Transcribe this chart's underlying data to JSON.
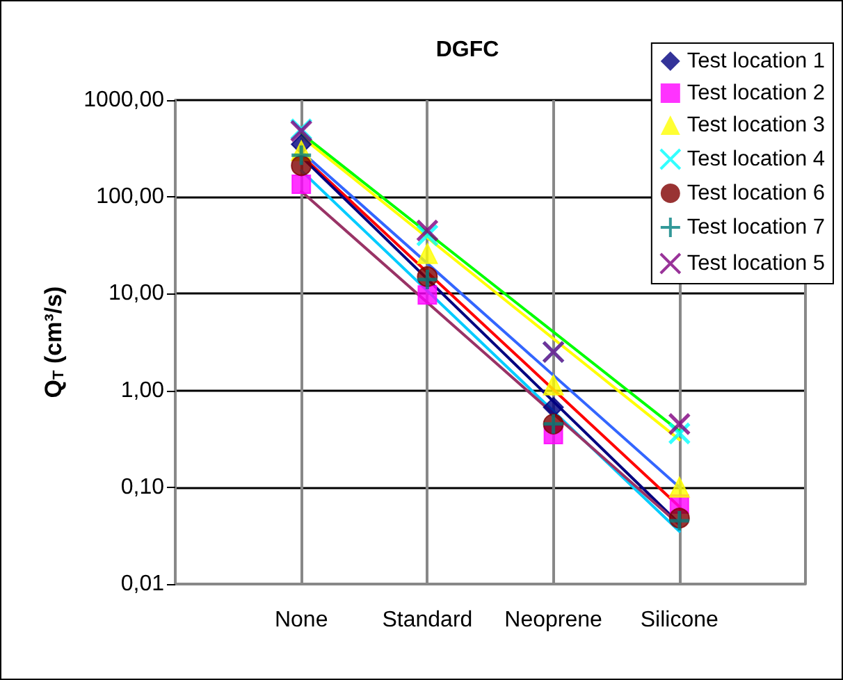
{
  "chart_data": {
    "type": "scatter",
    "title": "DGFC",
    "ylabel": "Q$_{T}$ (cm³/s)",
    "categories": [
      "None",
      "Standard",
      "Neoprene",
      "Silicone"
    ],
    "log": "y",
    "ylim": [
      0.01,
      1000
    ],
    "yticks": [
      {
        "value": 0.01,
        "label": "0,01"
      },
      {
        "value": 0.1,
        "label": "0,10"
      },
      {
        "value": 1,
        "label": "1,00"
      },
      {
        "value": 10,
        "label": "10,00"
      },
      {
        "value": 100,
        "label": "100,00"
      },
      {
        "value": 1000,
        "label": "1000,00"
      }
    ],
    "grid": true,
    "legend": "top right",
    "series": [
      {
        "name": "Test location 1",
        "color": "#000080",
        "marker": "diamond",
        "values": [
          350,
          null,
          0.67,
          null
        ]
      },
      {
        "name": "Test location 2",
        "color": "#ff00ff",
        "marker": "square",
        "values": [
          135,
          9.7,
          0.35,
          0.067
        ]
      },
      {
        "name": "Test location 3",
        "color": "#ffff00",
        "marker": "triangle",
        "values": [
          300,
          26,
          1.14,
          0.1
        ]
      },
      {
        "name": "Test location 4",
        "color": "#00ffff",
        "marker": "cross",
        "values": [
          500,
          40,
          2.5,
          0.36
        ]
      },
      {
        "name": "Test location 6",
        "color": "#800000",
        "marker": "circle",
        "values": [
          210,
          15,
          0.45,
          0.048
        ]
      },
      {
        "name": "Test location 7",
        "color": "#008080",
        "marker": "plus",
        "values": [
          270,
          14,
          0.45,
          0.045
        ]
      },
      {
        "name": "Test location 5",
        "color": "#800080",
        "marker": "cross",
        "values": [
          480,
          45,
          2.5,
          0.45
        ]
      },
      {
        "type": "line",
        "color": "#00ff00",
        "x": [
          "None",
          "Silicone"
        ],
        "values": [
          453,
          0.38
        ]
      },
      {
        "type": "line",
        "color": "#ffff00",
        "x": [
          "None",
          "Silicone"
        ],
        "values": [
          420,
          0.31
        ]
      },
      {
        "type": "line",
        "color": "#3366ff",
        "x": [
          "None",
          "Silicone"
        ],
        "values": [
          295,
          0.1
        ]
      },
      {
        "type": "line",
        "color": "#ff0000",
        "x": [
          "None",
          "Silicone"
        ],
        "values": [
          270,
          0.063
        ]
      },
      {
        "type": "line",
        "color": "#000080",
        "x": [
          "None",
          "Silicone"
        ],
        "values": [
          260,
          0.042
        ]
      },
      {
        "type": "line",
        "color": "#00ccff",
        "x": [
          "None",
          "Silicone"
        ],
        "values": [
          187,
          0.035
        ]
      },
      {
        "type": "line",
        "color": "#993366",
        "x": [
          "None",
          "Silicone"
        ],
        "values": [
          114,
          0.041
        ]
      }
    ]
  }
}
